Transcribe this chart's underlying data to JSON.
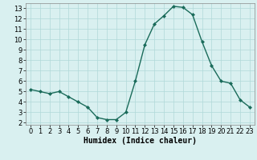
{
  "x": [
    0,
    1,
    2,
    3,
    4,
    5,
    6,
    7,
    8,
    9,
    10,
    11,
    12,
    13,
    14,
    15,
    16,
    17,
    18,
    19,
    20,
    21,
    22,
    23
  ],
  "y": [
    5.2,
    5.0,
    4.8,
    5.0,
    4.5,
    4.0,
    3.5,
    2.5,
    2.3,
    2.3,
    3.0,
    6.0,
    9.5,
    11.5,
    12.3,
    13.2,
    13.1,
    12.4,
    9.8,
    7.5,
    6.0,
    5.8,
    4.2,
    3.5
  ],
  "line_color": "#1a6b5a",
  "marker": "D",
  "marker_size": 2.0,
  "line_width": 1.0,
  "bg_color": "#d9f0f0",
  "grid_color": "#b0d8d8",
  "xlabel": "Humidex (Indice chaleur)",
  "xlabel_fontsize": 7,
  "tick_fontsize": 6,
  "xlim": [
    -0.5,
    23.5
  ],
  "ylim": [
    1.8,
    13.5
  ],
  "yticks": [
    2,
    3,
    4,
    5,
    6,
    7,
    8,
    9,
    10,
    11,
    12,
    13
  ],
  "xticks": [
    0,
    1,
    2,
    3,
    4,
    5,
    6,
    7,
    8,
    9,
    10,
    11,
    12,
    13,
    14,
    15,
    16,
    17,
    18,
    19,
    20,
    21,
    22,
    23
  ]
}
